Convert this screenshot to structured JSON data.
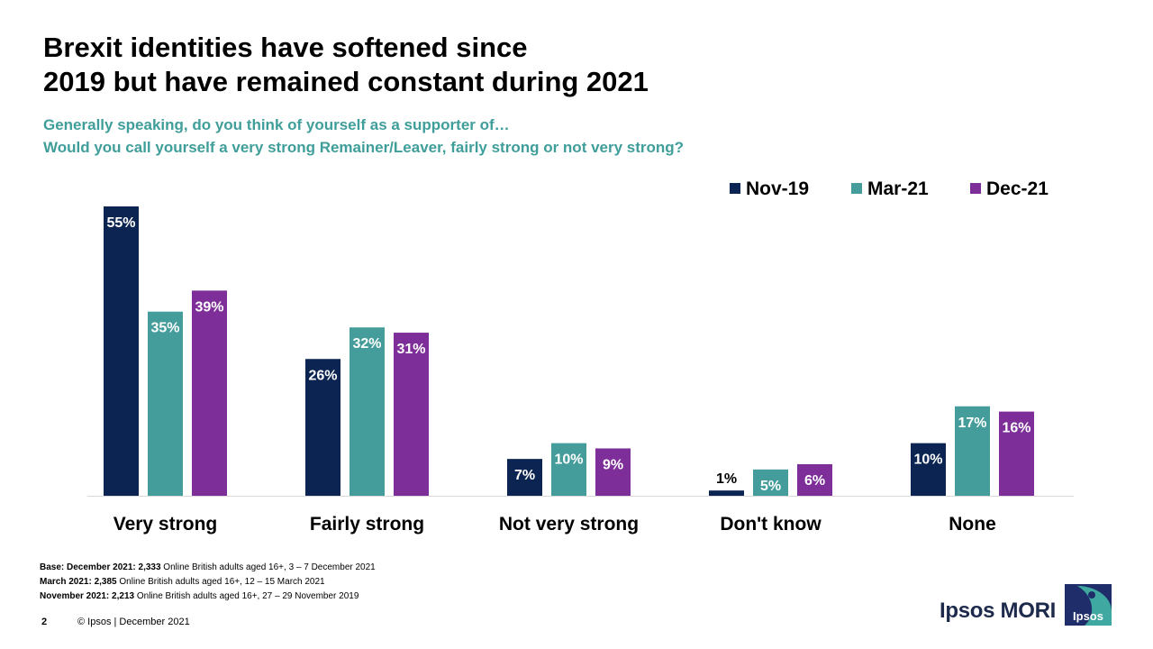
{
  "slide": {
    "title_lines": [
      "Brexit identities have softened since",
      "2019 but have remained constant during 2021"
    ],
    "subtitle_lines": [
      "Generally speaking, do you think of yourself as a supporter of…",
      "Would you call yourself a very strong Remainer/Leaver, fairly strong or not very strong?"
    ],
    "footnotes": [
      {
        "bold": "Base: December 2021: 2,333",
        "text": " Online British adults aged 16+, 3 – 7 December 2021"
      },
      {
        "bold": "March 2021: 2,385",
        "text": " Online British adults aged 16+, 12 – 15 March 2021"
      },
      {
        "bold": "November 2021: 2,213",
        "text": " Online British adults aged 16+, 27 – 29 November 2019"
      }
    ],
    "page_number": "2",
    "copyright": "© Ipsos | December 2021",
    "brand": "Ipsos MORI",
    "logo_text": "Ipsos"
  },
  "chart_data": {
    "type": "bar",
    "categories": [
      "Very strong",
      "Fairly strong",
      "Not very strong",
      "Don't know",
      "None"
    ],
    "series": [
      {
        "name": "Nov-19",
        "color": "#0c2451",
        "values": [
          55,
          26,
          7,
          1,
          10
        ],
        "labels": [
          "55%",
          "26%",
          "7%",
          "1%",
          "10%"
        ]
      },
      {
        "name": "Mar-21",
        "color": "#449c9b",
        "values": [
          35,
          32,
          10,
          5,
          17
        ],
        "labels": [
          "35%",
          "32%",
          "10%",
          "5%",
          "17%"
        ]
      },
      {
        "name": "Dec-21",
        "color": "#7e2e98",
        "values": [
          39,
          31,
          9,
          6,
          16
        ],
        "labels": [
          "39%",
          "31%",
          "9%",
          "6%",
          "16%"
        ]
      }
    ],
    "ylim": [
      0,
      55
    ],
    "legend_position": "top-right",
    "grid": false
  }
}
